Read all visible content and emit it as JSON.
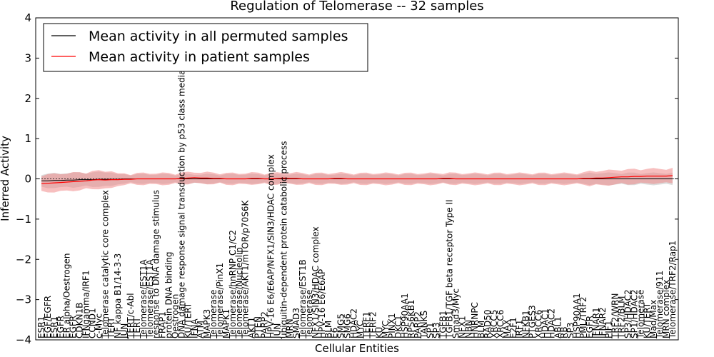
{
  "chart_data": {
    "type": "line",
    "title": "Regulation of Telomerase -- 32 samples",
    "xlabel": "Cellular Entities",
    "ylabel": "Inferred Activity",
    "ylim": [
      -4,
      4
    ],
    "yticks": [
      -4,
      -3,
      -2,
      -1,
      0,
      1,
      2,
      3,
      4
    ],
    "ytick_labels": [
      "−4",
      "−3",
      "−2",
      "−1",
      "0",
      "1",
      "2",
      "3",
      "4"
    ],
    "legend": {
      "position": "top-left",
      "entries": [
        "Mean activity in all permuted samples",
        "Mean activity in patient samples"
      ]
    },
    "colors": {
      "permuted": "#000000",
      "patient": "#ff0000",
      "patient_band": "#f08080",
      "permuted_band": "#bfbfbf"
    },
    "categories": [
      "ESR1",
      "EGF/EGFR",
      "ESR1",
      "EGFR",
      "ER alpha/Oestrogen",
      "EGFR",
      "CDKN1B",
      "IFNgamma/IRF1",
      "CCND1",
      "c-Myc",
      "Telomerase catalytic core complex",
      "TERT",
      "NF kappa B1/14-3-3",
      "JUN",
      "TERT/c-Abl",
      "TERT",
      "Telomerase/EST1A",
      "Telomerase/EST1A",
      "response to DNA damage stimulus",
      "FRAP1",
      "protein DNA binding",
      "Oestrogen",
      "DNA damage response signal transduction by p53 class mediator",
      "KU/TERT",
      "IFNA",
      "ATM",
      "MAPK3",
      "Telomerase",
      "Telomerase/PinX1",
      "MAPK1",
      "Telomerase/hnRNP C1/C2",
      "Telomerase/Nucleolin",
      "Telomerase/AKT1/mTOR/p70S6K",
      "AKT1",
      "PTEN",
      "PARP2",
      "HPV-16 E6/E6AP/NFX1/SIN3/HDAC complex",
      "JUN",
      "ubiquitin-dependent protein catabolic process",
      "MRN",
      "SMAD3",
      "Telomerase/EST1B",
      "Telomerase",
      "NFX1/SIN3/HDAC complex",
      "HPV-16 E6/E6AP",
      "BLM",
      "E6",
      "SMG5",
      "SMG6",
      "HDAC2",
      "MYC",
      "TERF1",
      "TERF2",
      "KU",
      "MYC",
      "PINX1",
      "DKC1",
      "HSP90AA1",
      "RPS6KB1",
      "PARP2",
      "TANKS",
      "SP1",
      "SP3",
      "TGFB1",
      "TGFB1/TGF beta receptor Type II",
      "Smad3/Myc",
      "NFX1",
      "NBN",
      "HNRNPC",
      "BLM",
      "RAD50",
      "XRCC5",
      "XRCC6",
      "MAX",
      "E2F1",
      "IRF1",
      "NFKB1",
      "PTGES3",
      "XRCC6",
      "HDAC1",
      "HDAC2",
      "ABL1",
      "RB",
      "SP3",
      "HSP90AA1",
      "PML/TRF2",
      "EGFR",
      "IFNAR1",
      "IFNAR2",
      "PIF1",
      "TRF2/WRN",
      "TRF2/BLM",
      "SP3/HDAC2",
      "SP1/HDAC2",
      "Telomerase",
      "KU/TERT",
      "Mad/Max",
      "Telomerase/911",
      "MRN complex",
      "Telomerase/TRF2/Rap1"
    ],
    "series": [
      {
        "name": "Mean activity in all permuted samples",
        "values": [
          -0.05,
          -0.05,
          -0.04,
          -0.04,
          -0.03,
          -0.03,
          -0.02,
          -0.02,
          -0.02,
          -0.01,
          -0.01,
          -0.01,
          -0.01,
          0,
          0,
          0,
          0,
          0,
          0,
          0,
          0,
          0,
          0,
          0,
          0,
          0,
          0,
          0,
          0,
          0,
          0,
          0,
          0,
          0,
          0,
          0,
          0,
          0,
          0,
          0,
          0,
          0,
          0,
          0,
          0,
          0,
          0,
          0,
          0,
          0,
          0,
          0,
          0,
          0,
          0,
          0,
          0,
          0,
          0,
          0,
          0,
          0,
          0,
          0,
          0,
          0,
          0,
          0,
          0,
          0,
          0,
          0,
          0,
          0,
          0,
          0,
          0,
          0,
          0,
          0,
          0,
          0,
          0,
          0,
          0,
          0,
          0,
          0,
          0,
          0,
          0,
          0,
          0,
          0,
          0,
          0,
          0,
          0,
          0,
          0
        ]
      },
      {
        "name": "Mean activity in patient samples",
        "values": [
          -0.12,
          -0.11,
          -0.1,
          -0.09,
          -0.08,
          -0.07,
          -0.06,
          -0.05,
          -0.03,
          -0.02,
          -0.03,
          -0.02,
          -0.02,
          -0.01,
          -0.01,
          0,
          0,
          0,
          0,
          0,
          0,
          0,
          0.01,
          0.02,
          0.03,
          0.02,
          0.02,
          0.01,
          0.01,
          0,
          0,
          0,
          0,
          0.01,
          0.01,
          0,
          0,
          0.01,
          0.02,
          0.01,
          0.01,
          0,
          0,
          0,
          0,
          0,
          0.01,
          0.01,
          0,
          0,
          0,
          0,
          0,
          0,
          0,
          0,
          0,
          0,
          0,
          0,
          0,
          0,
          0,
          0.01,
          0.01,
          0,
          0,
          0,
          0,
          0,
          0,
          0,
          0,
          0,
          0,
          0,
          0,
          0,
          0,
          0,
          0,
          0,
          0,
          0,
          0,
          0.01,
          0.01,
          0.02,
          0.02,
          0.03,
          0.04,
          0.05,
          0.05,
          0.06,
          0.06,
          0.07,
          0.07,
          0.07,
          0.07,
          0.08
        ]
      }
    ]
  }
}
